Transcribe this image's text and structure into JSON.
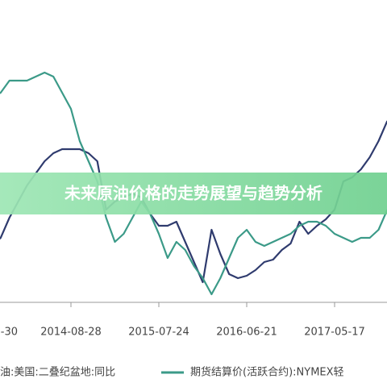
{
  "chart_data": {
    "type": "line",
    "title": "未来原油价格的走势展望与趋势分析",
    "categories": [
      "-30",
      null,
      null,
      null,
      null,
      null,
      null,
      null,
      null,
      null,
      "2014-08-28",
      null,
      null,
      null,
      null,
      null,
      null,
      null,
      null,
      null,
      "2015-07-24",
      null,
      null,
      null,
      null,
      null,
      null,
      null,
      null,
      null,
      "2016-06-21",
      null,
      null,
      null,
      null,
      null,
      null,
      null,
      null,
      null,
      "2017-05-17",
      null,
      null,
      null,
      null,
      null,
      null
    ],
    "ylim": [
      0,
      320
    ],
    "grid": false,
    "series": [
      {
        "name": "油:美国:二叠纪盆地:同比",
        "color": "#2f3b6e",
        "values": [
          60,
          75,
          85,
          110,
          130,
          150,
          165,
          180,
          190,
          195,
          195,
          195,
          190,
          180,
          120,
          130,
          135,
          140,
          135,
          115,
          100,
          100,
          105,
          80,
          55,
          30,
          95,
          65,
          40,
          35,
          38,
          45,
          55,
          58,
          70,
          78,
          105,
          90,
          100,
          108,
          120,
          155,
          160,
          170,
          185,
          205,
          230
        ]
      },
      {
        "name": "期货结算价(活跃合约):NYMEX轻",
        "color": "#3b9a88",
        "values": [
          250,
          260,
          265,
          280,
          280,
          280,
          285,
          290,
          285,
          265,
          245,
          205,
          180,
          155,
          110,
          80,
          90,
          110,
          130,
          115,
          90,
          60,
          80,
          70,
          50,
          35,
          15,
          35,
          60,
          85,
          95,
          80,
          75,
          80,
          85,
          90,
          100,
          105,
          105,
          100,
          90,
          85,
          80,
          85,
          85,
          95,
          120
        ]
      }
    ]
  }
}
